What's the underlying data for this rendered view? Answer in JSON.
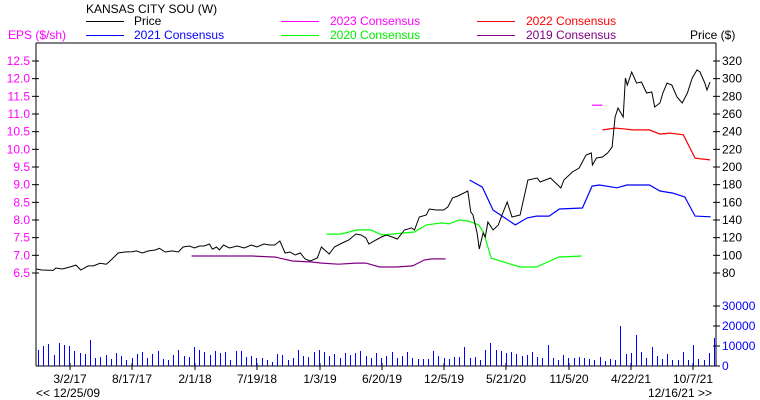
{
  "chart_data": {
    "type": "line",
    "title": "KANSAS CITY SOU (W)",
    "y_left_label": "EPS ($/sh)",
    "y_right_label": "Price ($)",
    "colors": {
      "price": "#000000",
      "c2023": "#ff00ff",
      "c2022": "#ff0000",
      "c2021": "#0000ff",
      "c2020": "#00ff00",
      "c2019": "#800080",
      "volume": "#0000ff",
      "eps_axis": "#ff00ff"
    },
    "legend": [
      {
        "key": "price",
        "label": "Price"
      },
      {
        "key": "c2023",
        "label": "2023 Consensus"
      },
      {
        "key": "c2022",
        "label": "2022 Consensus"
      },
      {
        "key": "c2021",
        "label": "2021 Consensus"
      },
      {
        "key": "c2020",
        "label": "2020 Consensus"
      },
      {
        "key": "c2019",
        "label": "2019 Consensus"
      }
    ],
    "price_ticks": [
      "320",
      "300",
      "280",
      "260",
      "240",
      "220",
      "200",
      "180",
      "160",
      "140",
      "120",
      "100",
      "80"
    ],
    "eps_ticks": [
      "12.5",
      "12.0",
      "11.5",
      "11.0",
      "10.5",
      "10.0",
      "9.5",
      "9.0",
      "8.5",
      "8.0",
      "7.5",
      "7.0",
      "6.5"
    ],
    "volume_ticks": [
      "30000",
      "20000",
      "10000",
      "0"
    ],
    "x_ticks": [
      "3/2/17",
      "8/17/17",
      "2/1/18",
      "7/19/18",
      "1/3/19",
      "6/20/19",
      "12/5/19",
      "5/21/20",
      "11/5/20",
      "4/22/21",
      "10/7/21"
    ],
    "range_start": "<< 12/25/09",
    "range_end": "12/16/21 >>",
    "ylim_price": [
      80,
      320
    ],
    "ylim_eps": [
      6.5,
      12.5
    ],
    "price": [
      [
        "2016-12-01",
        84.5
      ],
      [
        "2016-12-16",
        83.4
      ],
      [
        "2017-01-16",
        83
      ],
      [
        "2017-01-23",
        85.7
      ],
      [
        "2017-02-09",
        84.5
      ],
      [
        "2017-03-02",
        86.8
      ],
      [
        "2017-03-18",
        89
      ],
      [
        "2017-03-31",
        83.4
      ],
      [
        "2017-04-20",
        88
      ],
      [
        "2017-05-04",
        88
      ],
      [
        "2017-05-22",
        91
      ],
      [
        "2017-06-08",
        90
      ],
      [
        "2017-06-18",
        93.6
      ],
      [
        "2017-07-10",
        102.6
      ],
      [
        "2017-07-27",
        103.8
      ],
      [
        "2017-08-17",
        104
      ],
      [
        "2017-08-28",
        105
      ],
      [
        "2017-09-13",
        102.6
      ],
      [
        "2017-09-30",
        105
      ],
      [
        "2017-10-18",
        106
      ],
      [
        "2017-10-29",
        108
      ],
      [
        "2017-11-14",
        103.8
      ],
      [
        "2017-12-03",
        105
      ],
      [
        "2017-12-19",
        103.8
      ],
      [
        "2018-01-01",
        109.4
      ],
      [
        "2018-01-18",
        110.6
      ],
      [
        "2018-02-01",
        108.3
      ],
      [
        "2018-02-14",
        110.6
      ],
      [
        "2018-02-27",
        110.6
      ],
      [
        "2018-03-13",
        112.8
      ],
      [
        "2018-03-21",
        107
      ],
      [
        "2018-04-01",
        109.4
      ],
      [
        "2018-04-09",
        106
      ],
      [
        "2018-04-20",
        111.7
      ],
      [
        "2018-05-06",
        108.3
      ],
      [
        "2018-05-27",
        110.6
      ],
      [
        "2018-06-15",
        108.3
      ],
      [
        "2018-07-04",
        111.7
      ],
      [
        "2018-07-19",
        109.4
      ],
      [
        "2018-08-07",
        112.8
      ],
      [
        "2018-08-23",
        111.7
      ],
      [
        "2018-09-05",
        111.7
      ],
      [
        "2018-09-19",
        116.2
      ],
      [
        "2018-10-03",
        102.6
      ],
      [
        "2018-10-16",
        103.8
      ],
      [
        "2018-10-30",
        100.4
      ],
      [
        "2018-11-13",
        102.6
      ],
      [
        "2018-11-26",
        95.8
      ],
      [
        "2018-12-10",
        93.6
      ],
      [
        "2018-12-29",
        97
      ],
      [
        "2019-01-09",
        109.4
      ],
      [
        "2019-01-30",
        101.5
      ],
      [
        "2019-02-13",
        109.4
      ],
      [
        "2019-03-06",
        114
      ],
      [
        "2019-03-24",
        117.4
      ],
      [
        "2019-04-12",
        124.1
      ],
      [
        "2019-04-26",
        123
      ],
      [
        "2019-05-09",
        119.6
      ],
      [
        "2019-05-17",
        112.8
      ],
      [
        "2019-06-05",
        117.4
      ],
      [
        "2019-06-20",
        120.8
      ],
      [
        "2019-07-03",
        123
      ],
      [
        "2019-07-19",
        120.8
      ],
      [
        "2019-08-02",
        118.5
      ],
      [
        "2019-08-21",
        128.7
      ],
      [
        "2019-09-09",
        131
      ],
      [
        "2019-09-17",
        128.7
      ],
      [
        "2019-09-30",
        143.4
      ],
      [
        "2019-10-19",
        145.7
      ],
      [
        "2019-10-27",
        152.4
      ],
      [
        "2019-11-15",
        151.3
      ],
      [
        "2019-12-05",
        151.3
      ],
      [
        "2019-12-16",
        154.7
      ],
      [
        "2019-12-29",
        165
      ],
      [
        "2020-01-12",
        167.2
      ],
      [
        "2020-02-08",
        172.8
      ],
      [
        "2020-02-16",
        149
      ],
      [
        "2020-02-22",
        145.7
      ],
      [
        "2020-03-04",
        125.3
      ],
      [
        "2020-03-10",
        107.2
      ],
      [
        "2020-03-20",
        125.3
      ],
      [
        "2020-03-26",
        120.8
      ],
      [
        "2020-04-02",
        137.7
      ],
      [
        "2020-04-16",
        128.7
      ],
      [
        "2020-04-30",
        134.3
      ],
      [
        "2020-05-10",
        145.7
      ],
      [
        "2020-05-24",
        160.4
      ],
      [
        "2020-06-06",
        143.4
      ],
      [
        "2020-06-28",
        145.7
      ],
      [
        "2020-07-19",
        185.3
      ],
      [
        "2020-08-13",
        187.5
      ],
      [
        "2020-08-21",
        183
      ],
      [
        "2020-09-18",
        187.5
      ],
      [
        "2020-10-02",
        181.9
      ],
      [
        "2020-10-16",
        176.2
      ],
      [
        "2020-10-24",
        185.3
      ],
      [
        "2020-11-16",
        194.3
      ],
      [
        "2020-12-04",
        198.9
      ],
      [
        "2020-12-23",
        213.6
      ],
      [
        "2021-01-06",
        215.8
      ],
      [
        "2021-01-09",
        202.3
      ],
      [
        "2021-01-20",
        210.2
      ],
      [
        "2021-02-05",
        211.3
      ],
      [
        "2021-02-19",
        215.8
      ],
      [
        "2021-03-03",
        222.6
      ],
      [
        "2021-03-11",
        256.6
      ],
      [
        "2021-03-19",
        266.8
      ],
      [
        "2021-04-02",
        256.6
      ],
      [
        "2021-04-08",
        300.7
      ],
      [
        "2021-04-13",
        292.8
      ],
      [
        "2021-04-25",
        307.5
      ],
      [
        "2021-05-08",
        295
      ],
      [
        "2021-05-21",
        296.2
      ],
      [
        "2021-06-04",
        283.8
      ],
      [
        "2021-06-18",
        284.9
      ],
      [
        "2021-06-26",
        267.9
      ],
      [
        "2021-07-10",
        272.4
      ],
      [
        "2021-07-18",
        283.8
      ],
      [
        "2021-07-29",
        295
      ],
      [
        "2021-08-11",
        292.8
      ],
      [
        "2021-08-25",
        279.2
      ],
      [
        "2021-09-08",
        272.4
      ],
      [
        "2021-09-22",
        283.8
      ],
      [
        "2021-10-05",
        300.7
      ],
      [
        "2021-10-18",
        309.8
      ],
      [
        "2021-10-26",
        307.5
      ],
      [
        "2021-11-08",
        295
      ],
      [
        "2021-11-14",
        287.2
      ],
      [
        "2021-11-22",
        296.2
      ]
    ],
    "consensus": {
      "c2019": [
        [
          "2018-01-24",
          6.98
        ],
        [
          "2018-07-05",
          6.98
        ],
        [
          "2018-09-08",
          6.95
        ],
        [
          "2018-09-19",
          6.92
        ],
        [
          "2018-10-23",
          6.84
        ],
        [
          "2018-12-14",
          6.81
        ],
        [
          "2019-01-10",
          6.78
        ],
        [
          "2019-02-24",
          6.75
        ],
        [
          "2019-04-12",
          6.78
        ],
        [
          "2019-05-09",
          6.78
        ],
        [
          "2019-06-15",
          6.67
        ],
        [
          "2019-07-30",
          6.67
        ],
        [
          "2019-09-12",
          6.7
        ],
        [
          "2019-10-14",
          6.87
        ],
        [
          "2019-11-04",
          6.9
        ],
        [
          "2019-12-10",
          6.9
        ]
      ],
      "c2020": [
        [
          "2019-01-23",
          7.6
        ],
        [
          "2019-03-03",
          7.6
        ],
        [
          "2019-04-15",
          7.72
        ],
        [
          "2019-05-22",
          7.72
        ],
        [
          "2019-06-20",
          7.58
        ],
        [
          "2019-07-19",
          7.6
        ],
        [
          "2019-08-14",
          7.63
        ],
        [
          "2019-09-17",
          7.66
        ],
        [
          "2019-10-19",
          7.86
        ],
        [
          "2019-12-01",
          7.92
        ],
        [
          "2019-12-19",
          7.89
        ],
        [
          "2020-01-15",
          8.0
        ],
        [
          "2020-02-10",
          7.97
        ],
        [
          "2020-03-08",
          7.86
        ],
        [
          "2020-03-21",
          7.66
        ],
        [
          "2020-04-11",
          6.92
        ],
        [
          "2020-05-24",
          6.78
        ],
        [
          "2020-06-28",
          6.67
        ],
        [
          "2020-08-11",
          6.67
        ],
        [
          "2020-10-10",
          6.95
        ],
        [
          "2020-12-11",
          6.98
        ]
      ],
      "c2021": [
        [
          "2020-02-13",
          9.13
        ],
        [
          "2020-03-18",
          8.93
        ],
        [
          "2020-04-16",
          8.28
        ],
        [
          "2020-05-13",
          8.09
        ],
        [
          "2020-06-15",
          7.86
        ],
        [
          "2020-07-17",
          8.06
        ],
        [
          "2020-08-11",
          8.11
        ],
        [
          "2020-09-14",
          8.11
        ],
        [
          "2020-10-12",
          8.31
        ],
        [
          "2020-12-13",
          8.34
        ],
        [
          "2021-01-08",
          8.96
        ],
        [
          "2021-01-28",
          8.99
        ],
        [
          "2021-03-16",
          8.91
        ],
        [
          "2021-04-12",
          8.99
        ],
        [
          "2021-06-12",
          8.99
        ],
        [
          "2021-07-10",
          8.82
        ],
        [
          "2021-08-14",
          8.76
        ],
        [
          "2021-09-15",
          8.65
        ],
        [
          "2021-10-13",
          8.11
        ],
        [
          "2021-11-24",
          8.09
        ]
      ],
      "c2022": [
        [
          "2021-02-05",
          10.55
        ],
        [
          "2021-03-11",
          10.6
        ],
        [
          "2021-04-02",
          10.58
        ],
        [
          "2021-04-27",
          10.55
        ],
        [
          "2021-06-12",
          10.55
        ],
        [
          "2021-07-10",
          10.43
        ],
        [
          "2021-08-06",
          10.46
        ],
        [
          "2021-09-11",
          10.41
        ],
        [
          "2021-10-13",
          9.75
        ],
        [
          "2021-11-22",
          9.7
        ]
      ],
      "c2023": [
        [
          "2021-01-08",
          11.25
        ],
        [
          "2021-02-05",
          11.25
        ]
      ]
    },
    "volume": [
      8000,
      10000,
      11000,
      5500,
      11500,
      10500,
      10000,
      7500,
      6500,
      6000,
      13000,
      4000,
      4500,
      5500,
      3500,
      6500,
      5000,
      3000,
      4000,
      6000,
      7000,
      4000,
      6000,
      7500,
      3500,
      3000,
      5500,
      8000,
      5000,
      4500,
      9500,
      8000,
      7000,
      5500,
      7500,
      6500,
      7000,
      3000,
      7500,
      7500,
      4500,
      5000,
      4000,
      4000,
      3000,
      2000,
      6000,
      5500,
      3000,
      4000,
      8000,
      5000,
      4500,
      7000,
      8000,
      7000,
      5000,
      6000,
      4000,
      6500,
      5500,
      6500,
      7500,
      5000,
      4000,
      6500,
      4000,
      5000,
      7000,
      4000,
      5000,
      7000,
      4000,
      3500,
      3500,
      3500,
      7500,
      5000,
      4000,
      3500,
      4500,
      4500,
      9500,
      4000,
      4500,
      3000,
      8000,
      11500,
      8000,
      7500,
      6500,
      7000,
      6000,
      5000,
      5500,
      7000,
      4500,
      4000,
      10500,
      4000,
      3000,
      5500,
      4000,
      4000,
      4500,
      4000,
      3500,
      3000,
      4500,
      2500,
      3500,
      3000,
      20000,
      6000,
      6500,
      15500,
      7000,
      4000,
      9500,
      5000,
      3500,
      6000,
      3000,
      3000,
      7000,
      3000,
      10500,
      3500,
      3000,
      6500,
      14000
    ]
  }
}
